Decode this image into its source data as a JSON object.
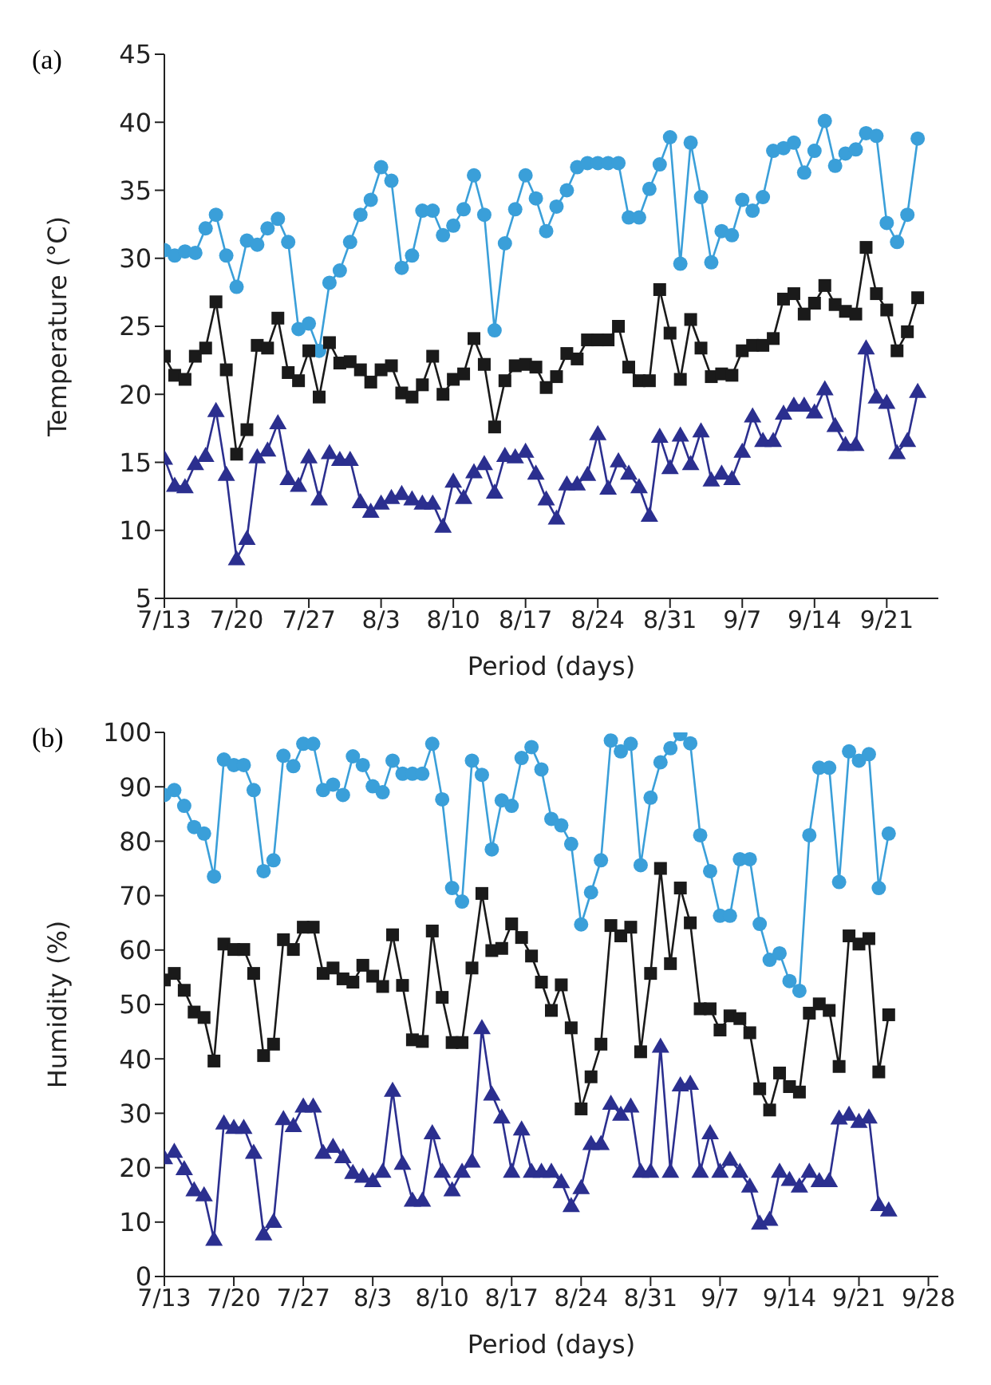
{
  "chart_data": [
    {
      "type": "line",
      "annotations": [
        "(a)"
      ],
      "xlabel": "Period (days)",
      "ylabel": "Temperature (°C)",
      "x": [
        "--07-13",
        "--07-14",
        "--07-15",
        "--07-16",
        "--07-17",
        "--07-18",
        "--07-19",
        "--07-20",
        "--07-21",
        "--07-22",
        "--07-23",
        "--07-24",
        "--07-25",
        "--07-26",
        "--07-27",
        "--07-28",
        "--07-29",
        "--07-30",
        "--07-31",
        "--08-01",
        "--08-02",
        "--08-03",
        "--08-04",
        "--08-05",
        "--08-06",
        "--08-07",
        "--08-08",
        "--08-09",
        "--08-10",
        "--08-11",
        "--08-12",
        "--08-13",
        "--08-14",
        "--08-15",
        "--08-16",
        "--08-17",
        "--08-18",
        "--08-19",
        "--08-20",
        "--08-21",
        "--08-22",
        "--08-23",
        "--08-24",
        "--08-25",
        "--08-26",
        "--08-27",
        "--08-28",
        "--08-29",
        "--08-30",
        "--08-31",
        "--09-01",
        "--09-02",
        "--09-03",
        "--09-04",
        "--09-05",
        "--09-06",
        "--09-07",
        "--09-08",
        "--09-09",
        "--09-10",
        "--09-11",
        "--09-12",
        "--09-13",
        "--09-14",
        "--09-15",
        "--09-16",
        "--09-17",
        "--09-18",
        "--09-19",
        "--09-20",
        "--09-21",
        "--09-22",
        "--09-23",
        "--09-24"
      ],
      "xlim": [
        "--07-13",
        "--09-26"
      ],
      "xticks": [
        {
          "value": "--07-13",
          "label": "7/13"
        },
        {
          "value": "--07-20",
          "label": "7/20"
        },
        {
          "value": "--07-27",
          "label": "7/27"
        },
        {
          "value": "--08-03",
          "label": "8/3"
        },
        {
          "value": "--08-10",
          "label": "8/10"
        },
        {
          "value": "--08-17",
          "label": "8/17"
        },
        {
          "value": "--08-24",
          "label": "8/24"
        },
        {
          "value": "--08-31",
          "label": "8/31"
        },
        {
          "value": "--09-07",
          "label": "9/7"
        },
        {
          "value": "--09-14",
          "label": "9/14"
        },
        {
          "value": "--09-21",
          "label": "9/21"
        }
      ],
      "ylim": [
        5,
        45
      ],
      "yticks": [
        5,
        10,
        15,
        20,
        25,
        30,
        35,
        40,
        45
      ],
      "series": [
        {
          "color": "#3a9fd9",
          "marker": "circle",
          "values": [
            30.6,
            30.2,
            30.5,
            30.4,
            32.2,
            33.2,
            30.2,
            27.9,
            31.3,
            31.0,
            32.2,
            32.9,
            31.2,
            24.8,
            25.2,
            23.2,
            28.2,
            29.1,
            31.2,
            33.2,
            34.3,
            36.7,
            35.7,
            29.3,
            30.2,
            33.5,
            33.5,
            31.7,
            32.4,
            33.6,
            36.1,
            33.2,
            24.7,
            31.1,
            33.6,
            36.1,
            34.4,
            32.0,
            33.8,
            35.0,
            36.7,
            37.0,
            37.0,
            37.0,
            37.0,
            33.0,
            33.0,
            35.1,
            36.9,
            38.9,
            29.6,
            38.5,
            34.5,
            29.7,
            32.0,
            31.7,
            34.3,
            33.5,
            34.5,
            37.9,
            38.1,
            38.5,
            36.3,
            37.9,
            40.1,
            36.8,
            37.7,
            38.0,
            39.2,
            39.0,
            32.6,
            31.2,
            33.2,
            38.8
          ]
        },
        {
          "color": "#1a1a1a",
          "marker": "square",
          "values": [
            22.8,
            21.4,
            21.1,
            22.8,
            23.4,
            26.8,
            21.8,
            15.6,
            17.4,
            23.6,
            23.4,
            25.6,
            21.6,
            21.0,
            23.2,
            19.8,
            23.8,
            22.3,
            22.4,
            21.8,
            20.9,
            21.8,
            22.1,
            20.1,
            19.8,
            20.7,
            22.8,
            20.0,
            21.1,
            21.5,
            24.1,
            22.2,
            17.6,
            21.0,
            22.1,
            22.2,
            22.0,
            20.5,
            21.3,
            23.0,
            22.6,
            24.0,
            24.0,
            24.0,
            25.0,
            22.0,
            21.0,
            21.0,
            27.7,
            24.5,
            21.1,
            25.5,
            23.4,
            21.3,
            21.5,
            21.4,
            23.2,
            23.6,
            23.6,
            24.1,
            27.0,
            27.4,
            25.9,
            26.7,
            28.0,
            26.6,
            26.1,
            25.9,
            30.8,
            27.4,
            26.2,
            23.2,
            24.6,
            27.1
          ]
        },
        {
          "color": "#2b2f8f",
          "marker": "triangle",
          "values": [
            15.3,
            13.3,
            13.2,
            14.9,
            15.5,
            18.8,
            14.1,
            7.9,
            9.4,
            15.4,
            15.9,
            17.9,
            13.8,
            13.3,
            15.4,
            12.3,
            15.7,
            15.2,
            15.2,
            12.1,
            11.4,
            12.0,
            12.4,
            12.7,
            12.3,
            12.0,
            12.0,
            10.3,
            13.6,
            12.4,
            14.3,
            14.9,
            12.8,
            15.5,
            15.4,
            15.8,
            14.2,
            12.3,
            10.9,
            13.4,
            13.4,
            14.1,
            17.1,
            13.1,
            15.1,
            14.2,
            13.2,
            11.1,
            16.9,
            14.6,
            17.0,
            14.9,
            17.3,
            13.7,
            14.2,
            13.8,
            15.8,
            18.4,
            16.6,
            16.6,
            18.6,
            19.2,
            19.2,
            18.7,
            20.4,
            17.7,
            16.3,
            16.3,
            23.4,
            19.8,
            19.4,
            15.7,
            16.6,
            20.2
          ]
        }
      ]
    },
    {
      "type": "line",
      "annotations": [
        "(b)"
      ],
      "xlabel": "Period (days)",
      "ylabel": "Humidity (%)",
      "x": [
        "--07-13",
        "--07-14",
        "--07-15",
        "--07-16",
        "--07-17",
        "--07-18",
        "--07-19",
        "--07-20",
        "--07-21",
        "--07-22",
        "--07-23",
        "--07-24",
        "--07-25",
        "--07-26",
        "--07-27",
        "--07-28",
        "--07-29",
        "--07-30",
        "--07-31",
        "--08-01",
        "--08-02",
        "--08-03",
        "--08-04",
        "--08-05",
        "--08-06",
        "--08-07",
        "--08-08",
        "--08-09",
        "--08-10",
        "--08-11",
        "--08-12",
        "--08-13",
        "--08-14",
        "--08-15",
        "--08-16",
        "--08-17",
        "--08-18",
        "--08-19",
        "--08-20",
        "--08-21",
        "--08-22",
        "--08-23",
        "--08-24",
        "--08-25",
        "--08-26",
        "--08-27",
        "--08-28",
        "--08-29",
        "--08-30",
        "--08-31",
        "--09-01",
        "--09-02",
        "--09-03",
        "--09-04",
        "--09-05",
        "--09-06",
        "--09-07",
        "--09-08",
        "--09-09",
        "--09-10",
        "--09-11",
        "--09-12",
        "--09-13",
        "--09-14",
        "--09-15",
        "--09-16",
        "--09-17",
        "--09-18",
        "--09-19",
        "--09-20",
        "--09-21",
        "--09-22",
        "--09-23",
        "--09-24"
      ],
      "xlim": [
        "--07-13",
        "--09-29"
      ],
      "xticks": [
        {
          "value": "--07-13",
          "label": "7/13"
        },
        {
          "value": "--07-20",
          "label": "7/20"
        },
        {
          "value": "--07-27",
          "label": "7/27"
        },
        {
          "value": "--08-03",
          "label": "8/3"
        },
        {
          "value": "--08-10",
          "label": "8/10"
        },
        {
          "value": "--08-17",
          "label": "8/17"
        },
        {
          "value": "--08-24",
          "label": "8/24"
        },
        {
          "value": "--08-31",
          "label": "8/31"
        },
        {
          "value": "--09-07",
          "label": "9/7"
        },
        {
          "value": "--09-14",
          "label": "9/14"
        },
        {
          "value": "--09-21",
          "label": "9/21"
        },
        {
          "value": "--09-28",
          "label": "9/28"
        }
      ],
      "ylim": [
        0,
        100
      ],
      "yticks": [
        0,
        10,
        20,
        30,
        40,
        50,
        60,
        70,
        80,
        90,
        100
      ],
      "series": [
        {
          "color": "#3a9fd9",
          "marker": "circle",
          "values": [
            88.5,
            89.4,
            86.5,
            82.6,
            81.4,
            73.5,
            95.0,
            94.0,
            94.0,
            89.4,
            74.5,
            76.5,
            95.7,
            93.8,
            97.9,
            97.9,
            89.4,
            90.4,
            88.5,
            95.6,
            94.0,
            90.1,
            89.0,
            94.8,
            92.4,
            92.4,
            92.4,
            97.9,
            87.7,
            71.4,
            68.9,
            94.8,
            92.2,
            78.5,
            87.5,
            86.5,
            95.3,
            97.3,
            93.2,
            84.1,
            82.9,
            79.5,
            64.7,
            70.6,
            76.5,
            98.5,
            96.5,
            97.9,
            75.6,
            88.0,
            94.5,
            97.1,
            99.7,
            98.0,
            81.1,
            74.5,
            66.3,
            66.3,
            76.7,
            76.7,
            64.8,
            58.2,
            59.4,
            54.3,
            52.5,
            81.1,
            93.5,
            93.5,
            72.5,
            96.5,
            94.8,
            96.0,
            71.4,
            81.4
          ]
        },
        {
          "color": "#1a1a1a",
          "marker": "square",
          "values": [
            54.5,
            55.7,
            52.6,
            48.6,
            47.6,
            39.6,
            61.1,
            60.1,
            60.1,
            55.7,
            40.6,
            42.7,
            61.9,
            60.1,
            64.2,
            64.2,
            55.7,
            56.7,
            54.7,
            54.1,
            57.2,
            55.2,
            53.3,
            62.8,
            53.5,
            43.5,
            43.2,
            63.5,
            51.3,
            43.0,
            43.0,
            56.7,
            70.4,
            59.9,
            60.3,
            64.8,
            62.3,
            58.9,
            54.1,
            48.9,
            53.6,
            45.7,
            30.8,
            36.7,
            42.7,
            64.5,
            62.6,
            64.2,
            41.3,
            55.7,
            75.0,
            57.5,
            71.4,
            65.0,
            49.2,
            49.2,
            45.3,
            47.9,
            47.4,
            44.8,
            34.5,
            30.6,
            37.4,
            34.9,
            33.9,
            48.4,
            50.1,
            48.9,
            38.6,
            62.6,
            61.1,
            62.1,
            37.6,
            48.1
          ]
        },
        {
          "color": "#2b2f8f",
          "marker": "triangle",
          "values": [
            21.8,
            23.0,
            19.8,
            15.9,
            15.0,
            6.8,
            28.2,
            27.4,
            27.4,
            22.8,
            7.8,
            10.1,
            29.0,
            27.7,
            31.3,
            31.3,
            22.8,
            23.9,
            22.0,
            19.1,
            18.4,
            17.6,
            19.3,
            34.2,
            20.8,
            14.0,
            14.0,
            26.4,
            19.3,
            15.9,
            19.3,
            21.2,
            45.7,
            33.5,
            29.3,
            19.3,
            27.1,
            19.3,
            19.3,
            19.3,
            17.4,
            13.0,
            16.3,
            24.4,
            24.4,
            31.8,
            29.8,
            31.3,
            19.3,
            19.3,
            42.3,
            19.3,
            35.2,
            35.5,
            19.3,
            26.4,
            19.3,
            21.5,
            19.3,
            16.6,
            9.8,
            10.5,
            19.3,
            17.8,
            16.6,
            19.3,
            17.6,
            17.6,
            29.1,
            29.8,
            28.5,
            29.3,
            13.2,
            12.2
          ]
        }
      ]
    }
  ]
}
